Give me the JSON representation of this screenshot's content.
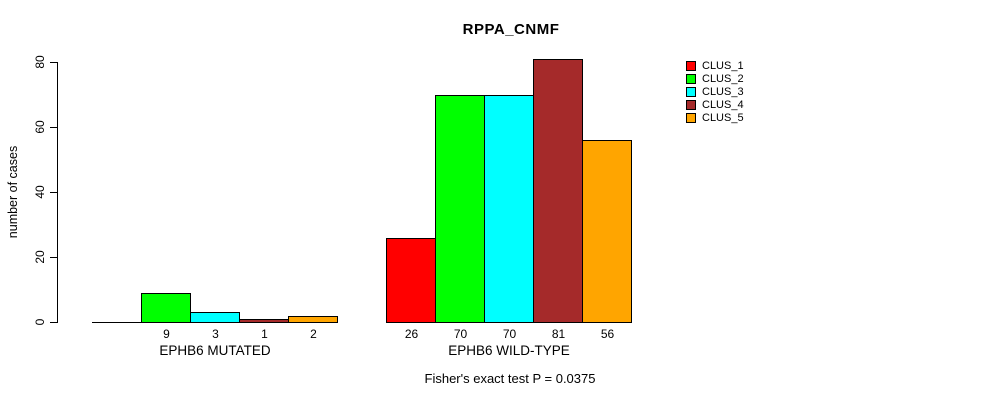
{
  "chart_data": {
    "type": "bar",
    "title": "RPPA_CNMF",
    "ylabel": "number of cases",
    "xlabel": "",
    "ylim": [
      0,
      80
    ],
    "yticks": [
      0,
      20,
      40,
      60,
      80
    ],
    "grid": false,
    "legend_position": "right",
    "series": [
      {
        "name": "CLUS_1",
        "color": "#FF0000"
      },
      {
        "name": "CLUS_2",
        "color": "#00FF00"
      },
      {
        "name": "CLUS_3",
        "color": "#00FFFF"
      },
      {
        "name": "CLUS_4",
        "color": "#A52A2A"
      },
      {
        "name": "CLUS_5",
        "color": "#FFA500"
      }
    ],
    "groups": [
      {
        "label": "EPHB6 MUTATED",
        "values": [
          0,
          9,
          3,
          1,
          2
        ]
      },
      {
        "label": "EPHB6 WILD-TYPE",
        "values": [
          26,
          70,
          70,
          81,
          56
        ]
      }
    ],
    "bar_value_labels_shown": true,
    "hide_zero_value_labels": true,
    "annotation": "Fisher's exact test P = 0.0375"
  }
}
